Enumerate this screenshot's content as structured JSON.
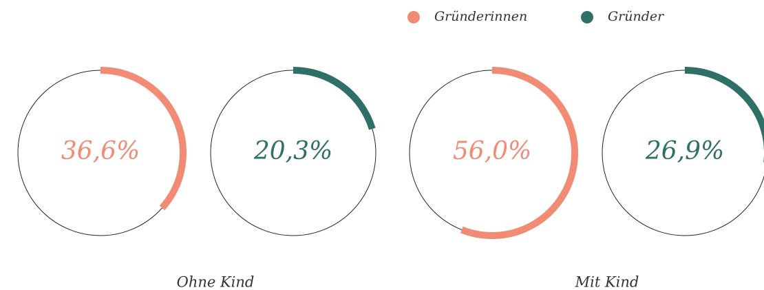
{
  "chart_data": {
    "type": "progress-ring",
    "categories": [
      "Ohne Kind",
      "Mit Kind"
    ],
    "ylim": [
      0,
      100
    ],
    "series": [
      {
        "name": "Gründerinnen",
        "color": "#f28b74",
        "values": [
          36.6,
          56.0
        ],
        "value_labels": [
          "36,6%",
          "56,0%"
        ]
      },
      {
        "name": "Gründer",
        "color": "#2e6f66",
        "values": [
          20.3,
          26.9
        ],
        "value_labels": [
          "20,3%",
          "26,9%"
        ]
      }
    ],
    "legend": "top"
  }
}
